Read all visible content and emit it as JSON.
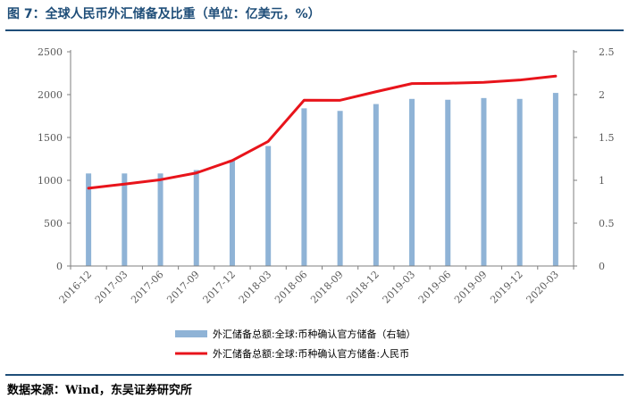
{
  "figure": {
    "title": "图 7：全球人民币外汇储备及比重（单位：亿美元，%）",
    "source": "数据来源：Wind，东吴证券研究所"
  },
  "colors": {
    "title": "#1f4e79",
    "bar": "#8fb3d6",
    "line": "#e8141b",
    "axis": "#7f7f7f",
    "tick_text": "#595959"
  },
  "chart_data": {
    "type": "bar",
    "categories": [
      "2016-12",
      "2017-03",
      "2017-06",
      "2017-09",
      "2017-12",
      "2018-03",
      "2018-06",
      "2018-09",
      "2018-12",
      "2019-03",
      "2019-06",
      "2019-09",
      "2019-12",
      "2020-03"
    ],
    "y_left_ticks": [
      "0",
      "500",
      "1000",
      "1500",
      "2000",
      "2500"
    ],
    "y_right_ticks": [
      "0",
      "0.5",
      "1",
      "1.5",
      "2",
      "2.5"
    ],
    "ylim_left": [
      0,
      2500
    ],
    "ylim_right": [
      0,
      2.5
    ],
    "series": [
      {
        "name": "外汇储备总额:全球:币种确认官方储备（右轴）",
        "type": "bar",
        "axis": "right",
        "values": [
          1.08,
          1.08,
          1.08,
          1.12,
          1.23,
          1.4,
          1.84,
          1.81,
          1.89,
          1.95,
          1.94,
          1.96,
          1.95,
          2.02
        ]
      },
      {
        "name": "外汇储备总额:全球:币种确认官方储备:人民币",
        "type": "line",
        "axis": "left",
        "values": [
          908,
          956,
          1007,
          1086,
          1231,
          1454,
          1935,
          1934,
          2034,
          2129,
          2133,
          2143,
          2170,
          2216
        ]
      }
    ],
    "legend_position": "bottom",
    "grid": false
  }
}
